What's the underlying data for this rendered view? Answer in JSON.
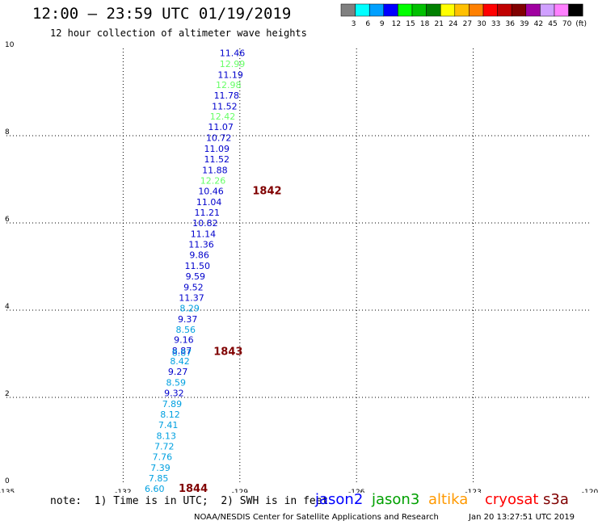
{
  "header": {
    "title": "12:00 – 23:59 UTC 01/19/2019",
    "subtitle": "12 hour collection of altimeter wave heights"
  },
  "colorbar": {
    "labels": [
      "3",
      "6",
      "9",
      "12",
      "15",
      "18",
      "21",
      "24",
      "27",
      "30",
      "33",
      "36",
      "39",
      "42",
      "45",
      "70",
      "(ft)"
    ],
    "colors": [
      "#808080",
      "#00ffff",
      "#00a0ff",
      "#0000ff",
      "#00ff00",
      "#00c000",
      "#008000",
      "#ffff00",
      "#ffc000",
      "#ff8000",
      "#ff0000",
      "#c00000",
      "#800000",
      "#a000a0",
      "#d0a0ff",
      "#ff80ff",
      "#000000"
    ]
  },
  "chart_data": {
    "type": "scatter",
    "x_axis": {
      "range": [
        -135,
        -120
      ],
      "ticks": [
        "-135",
        "-132",
        "-129",
        "-126",
        "-123",
        "-120"
      ]
    },
    "y_axis": {
      "range": [
        0,
        10
      ],
      "ticks": [
        "0",
        "2",
        "4",
        "6",
        "8",
        "10"
      ]
    },
    "grid": true,
    "points": [
      {
        "x": -129.4,
        "y": 9.9,
        "label": "11.46",
        "color": "#0000cc"
      },
      {
        "x": -129.4,
        "y": 9.65,
        "label": "12.99",
        "color": "#66ff66"
      },
      {
        "x": -129.45,
        "y": 9.4,
        "label": "11.19",
        "color": "#0000cc"
      },
      {
        "x": -129.5,
        "y": 9.17,
        "label": "12.98",
        "color": "#66ff66"
      },
      {
        "x": -129.55,
        "y": 8.93,
        "label": "11.78",
        "color": "#0000cc"
      },
      {
        "x": -129.6,
        "y": 8.68,
        "label": "11.52",
        "color": "#0000cc"
      },
      {
        "x": -129.65,
        "y": 8.44,
        "label": "12.42",
        "color": "#66ff66"
      },
      {
        "x": -129.7,
        "y": 8.2,
        "label": "11.07",
        "color": "#0000cc"
      },
      {
        "x": -129.75,
        "y": 7.95,
        "label": "10.72",
        "color": "#0000cc"
      },
      {
        "x": -129.8,
        "y": 7.7,
        "label": "11.09",
        "color": "#0000cc"
      },
      {
        "x": -129.8,
        "y": 7.46,
        "label": "11.52",
        "color": "#0000cc"
      },
      {
        "x": -129.85,
        "y": 7.21,
        "label": "11.88",
        "color": "#0000cc"
      },
      {
        "x": -129.9,
        "y": 6.97,
        "label": "12.26",
        "color": "#66ff66"
      },
      {
        "x": -129.95,
        "y": 6.73,
        "label": "10.46",
        "color": "#0000cc"
      },
      {
        "x": -130.0,
        "y": 6.48,
        "label": "11.04",
        "color": "#0000cc"
      },
      {
        "x": -130.05,
        "y": 6.24,
        "label": "11.21",
        "color": "#0000cc"
      },
      {
        "x": -130.1,
        "y": 6.0,
        "label": "10.82",
        "color": "#0000cc"
      },
      {
        "x": -130.15,
        "y": 5.75,
        "label": "11.14",
        "color": "#0000cc"
      },
      {
        "x": -130.2,
        "y": 5.51,
        "label": "11.36",
        "color": "#0000cc"
      },
      {
        "x": -130.25,
        "y": 5.27,
        "label": "9.86",
        "color": "#0000cc"
      },
      {
        "x": -130.3,
        "y": 5.02,
        "label": "11.50",
        "color": "#0000cc"
      },
      {
        "x": -130.35,
        "y": 4.78,
        "label": "9.59",
        "color": "#0000cc"
      },
      {
        "x": -130.4,
        "y": 4.53,
        "label": "9.52",
        "color": "#0000cc"
      },
      {
        "x": -130.45,
        "y": 4.29,
        "label": "11.37",
        "color": "#0000cc"
      },
      {
        "x": -130.5,
        "y": 4.05,
        "label": "8.29",
        "color": "#00a0e0"
      },
      {
        "x": -130.55,
        "y": 3.8,
        "label": "9.37",
        "color": "#0000cc"
      },
      {
        "x": -130.6,
        "y": 3.56,
        "label": "8.56",
        "color": "#00a0e0"
      },
      {
        "x": -130.65,
        "y": 3.32,
        "label": "9.16",
        "color": "#0000cc"
      },
      {
        "x": -130.7,
        "y": 3.07,
        "label": "8.87",
        "color": "#0000cc"
      },
      {
        "x": -130.7,
        "y": 3.03,
        "label": "8.87",
        "color": "#00a0e0"
      },
      {
        "x": -130.75,
        "y": 2.83,
        "label": "8.42",
        "color": "#00a0e0"
      },
      {
        "x": -130.8,
        "y": 2.59,
        "label": "9.27",
        "color": "#0000cc"
      },
      {
        "x": -130.85,
        "y": 2.34,
        "label": "8.59",
        "color": "#00a0e0"
      },
      {
        "x": -130.9,
        "y": 2.1,
        "label": "9.32",
        "color": "#0000cc"
      },
      {
        "x": -130.95,
        "y": 1.85,
        "label": "7.89",
        "color": "#00a0e0"
      },
      {
        "x": -131.0,
        "y": 1.61,
        "label": "8.12",
        "color": "#00a0e0"
      },
      {
        "x": -131.05,
        "y": 1.37,
        "label": "7.41",
        "color": "#00a0e0"
      },
      {
        "x": -131.1,
        "y": 1.12,
        "label": "8.13",
        "color": "#00a0e0"
      },
      {
        "x": -131.15,
        "y": 0.88,
        "label": "7.72",
        "color": "#00a0e0"
      },
      {
        "x": -131.2,
        "y": 0.64,
        "label": "7.76",
        "color": "#00a0e0"
      },
      {
        "x": -131.25,
        "y": 0.39,
        "label": "7.39",
        "color": "#00a0e0"
      },
      {
        "x": -131.3,
        "y": 0.15,
        "label": "7.85",
        "color": "#00a0e0"
      },
      {
        "x": -131.4,
        "y": -0.09,
        "label": "6.60",
        "color": "#00a0e0"
      }
    ],
    "pass_labels": [
      {
        "x": -128.3,
        "y": 6.73,
        "label": "1842",
        "color": "#800000"
      },
      {
        "x": -129.3,
        "y": 3.05,
        "label": "1843",
        "color": "#800000"
      },
      {
        "x": -130.2,
        "y": -0.09,
        "label": "1844",
        "color": "#800000"
      }
    ]
  },
  "footer": {
    "note": "note:  1) Time is in UTC;  2) SWH is in feet",
    "missions": [
      {
        "name": "jason2",
        "color": "#0000ff"
      },
      {
        "name": "jason3",
        "color": "#00a000"
      },
      {
        "name": "altika",
        "color": "#ff9900"
      },
      {
        "name": "cryosat",
        "color": "#ff0000"
      },
      {
        "name": "s3a",
        "color": "#800000"
      }
    ],
    "org": "NOAA/NESDIS Center for Satellite Applications and Research",
    "generated": "Jan 20 13:27:51 UTC 2019"
  }
}
